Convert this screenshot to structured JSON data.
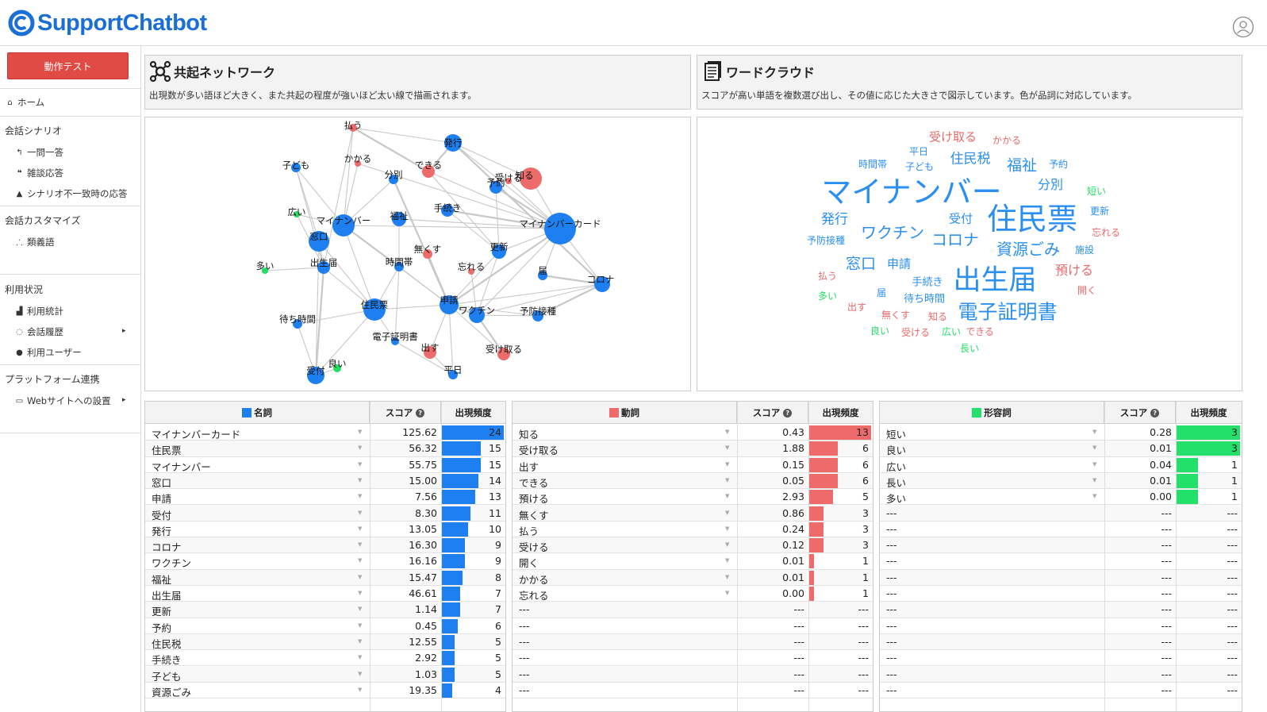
{
  "app": {
    "logo_text": "SupportChatbot"
  },
  "sidebar": {
    "test_button": "動作テスト",
    "home": "ホーム",
    "section_scenario": "会話シナリオ",
    "qa": "一問一答",
    "smalltalk": "雑談応答",
    "mismatch": "シナリオ不一致時の応答",
    "section_custom": "会話カスタマイズ",
    "synonyms": "類義語",
    "section_usage": "利用状況",
    "stats": "利用統計",
    "history": "会話履歴",
    "users": "利用ユーザー",
    "section_platform": "プラットフォーム連携",
    "web": "Webサイトへの設置"
  },
  "network_panel": {
    "title": "共起ネットワーク",
    "desc": "出現数が多い語ほど大きく、また共起の程度が強いほど太い線で描画されます。",
    "nodes": [
      {
        "label": "払う",
        "color": "red"
      },
      {
        "label": "発行",
        "color": "blue"
      },
      {
        "label": "子ども",
        "color": "blue"
      },
      {
        "label": "かかる",
        "color": "red"
      },
      {
        "label": "分別",
        "color": "blue"
      },
      {
        "label": "できる",
        "color": "red"
      },
      {
        "label": "受ける",
        "color": "red"
      },
      {
        "label": "知る",
        "color": "red"
      },
      {
        "label": "予約",
        "color": "blue"
      },
      {
        "label": "広い",
        "color": "green"
      },
      {
        "label": "マイナンバー",
        "color": "blue"
      },
      {
        "label": "福祉",
        "color": "blue"
      },
      {
        "label": "手続き",
        "color": "blue"
      },
      {
        "label": "マイナンバーカード",
        "color": "blue"
      },
      {
        "label": "窓口",
        "color": "blue"
      },
      {
        "label": "無くす",
        "color": "red"
      },
      {
        "label": "更新",
        "color": "blue"
      },
      {
        "label": "多い",
        "color": "green"
      },
      {
        "label": "出生届",
        "color": "blue"
      },
      {
        "label": "時間帯",
        "color": "blue"
      },
      {
        "label": "忘れる",
        "color": "red"
      },
      {
        "label": "届",
        "color": "blue"
      },
      {
        "label": "コロナ",
        "color": "blue"
      },
      {
        "label": "住民票",
        "color": "blue"
      },
      {
        "label": "申請",
        "color": "blue"
      },
      {
        "label": "ワクチン",
        "color": "blue"
      },
      {
        "label": "予防接種",
        "color": "blue"
      },
      {
        "label": "待ち時間",
        "color": "blue"
      },
      {
        "label": "電子証明書",
        "color": "blue"
      },
      {
        "label": "出す",
        "color": "red"
      },
      {
        "label": "受け取る",
        "color": "red"
      },
      {
        "label": "良い",
        "color": "green"
      },
      {
        "label": "受付",
        "color": "blue"
      },
      {
        "label": "平日",
        "color": "blue"
      }
    ]
  },
  "cloud_panel": {
    "title": "ワードクラウド",
    "desc": "スコアが高い単語を複数選び出し、その値に応じた大きさで図示しています。色が品詞に対応しています。",
    "words": [
      {
        "text": "受け取る",
        "color": "#e86a6a"
      },
      {
        "text": "かかる",
        "color": "#e86a6a"
      },
      {
        "text": "平日",
        "color": "#2a8ff0"
      },
      {
        "text": "時間帯",
        "color": "#2a8ff0"
      },
      {
        "text": "子ども",
        "color": "#2a8ff0"
      },
      {
        "text": "住民税",
        "color": "#2a8ff0"
      },
      {
        "text": "福祉",
        "color": "#2a8ff0"
      },
      {
        "text": "予約",
        "color": "#2a8ff0"
      },
      {
        "text": "マイナンバー",
        "color": "#2a8ff0"
      },
      {
        "text": "分別",
        "color": "#2a8ff0"
      },
      {
        "text": "短い",
        "color": "#22dd66"
      },
      {
        "text": "住民票",
        "color": "#2a8ff0"
      },
      {
        "text": "発行",
        "color": "#2a8ff0"
      },
      {
        "text": "受付",
        "color": "#2a8ff0"
      },
      {
        "text": "更新",
        "color": "#2a8ff0"
      },
      {
        "text": "ワクチン",
        "color": "#2a8ff0"
      },
      {
        "text": "予防接種",
        "color": "#2a8ff0"
      },
      {
        "text": "コロナ",
        "color": "#2a8ff0"
      },
      {
        "text": "忘れる",
        "color": "#e86a6a"
      },
      {
        "text": "資源ごみ",
        "color": "#2a8ff0"
      },
      {
        "text": "施設",
        "color": "#2a8ff0"
      },
      {
        "text": "窓口",
        "color": "#2a8ff0"
      },
      {
        "text": "申請",
        "color": "#2a8ff0"
      },
      {
        "text": "預ける",
        "color": "#e86a6a"
      },
      {
        "text": "払う",
        "color": "#e86a6a"
      },
      {
        "text": "出生届",
        "color": "#2a8ff0"
      },
      {
        "text": "手続き",
        "color": "#2a8ff0"
      },
      {
        "text": "開く",
        "color": "#e86a6a"
      },
      {
        "text": "多い",
        "color": "#22dd66"
      },
      {
        "text": "届",
        "color": "#2a8ff0"
      },
      {
        "text": "待ち時間",
        "color": "#2a8ff0"
      },
      {
        "text": "出す",
        "color": "#e86a6a"
      },
      {
        "text": "電子証明書",
        "color": "#2a8ff0"
      },
      {
        "text": "無くす",
        "color": "#e86a6a"
      },
      {
        "text": "知る",
        "color": "#e86a6a"
      },
      {
        "text": "良い",
        "color": "#22dd66"
      },
      {
        "text": "受ける",
        "color": "#e86a6a"
      },
      {
        "text": "広い",
        "color": "#22dd66"
      },
      {
        "text": "できる",
        "color": "#e86a6a"
      },
      {
        "text": "長い",
        "color": "#22dd66"
      }
    ]
  },
  "tables": [
    {
      "header": "名詞",
      "score_label": "スコア",
      "freq_label": "出現頻度",
      "color": "#1e7ff0",
      "max": 24,
      "rows": [
        [
          "マイナンバーカード",
          "125.62",
          24
        ],
        [
          "住民票",
          "56.32",
          15
        ],
        [
          "マイナンバー",
          "55.75",
          15
        ],
        [
          "窓口",
          "15.00",
          14
        ],
        [
          "申請",
          "7.56",
          13
        ],
        [
          "受付",
          "8.30",
          11
        ],
        [
          "発行",
          "13.05",
          10
        ],
        [
          "コロナ",
          "16.30",
          9
        ],
        [
          "ワクチン",
          "16.16",
          9
        ],
        [
          "福祉",
          "15.47",
          8
        ],
        [
          "出生届",
          "46.61",
          7
        ],
        [
          "更新",
          "1.14",
          7
        ],
        [
          "予約",
          "0.45",
          6
        ],
        [
          "住民税",
          "12.55",
          5
        ],
        [
          "手続き",
          "2.92",
          5
        ],
        [
          "子ども",
          "1.03",
          5
        ],
        [
          "資源ごみ",
          "19.35",
          4
        ]
      ]
    },
    {
      "header": "動詞",
      "score_label": "スコア",
      "freq_label": "出現頻度",
      "color": "#ef6b6b",
      "max": 13,
      "rows": [
        [
          "知る",
          "0.43",
          13
        ],
        [
          "受け取る",
          "1.88",
          6
        ],
        [
          "出す",
          "0.15",
          6
        ],
        [
          "できる",
          "0.05",
          6
        ],
        [
          "預ける",
          "2.93",
          5
        ],
        [
          "無くす",
          "0.86",
          3
        ],
        [
          "払う",
          "0.24",
          3
        ],
        [
          "受ける",
          "0.12",
          3
        ],
        [
          "開く",
          "0.01",
          1
        ],
        [
          "かかる",
          "0.01",
          1
        ],
        [
          "忘れる",
          "0.00",
          1
        ],
        [
          "---",
          "---",
          "---"
        ],
        [
          "---",
          "---",
          "---"
        ],
        [
          "---",
          "---",
          "---"
        ],
        [
          "---",
          "---",
          "---"
        ],
        [
          "---",
          "---",
          "---"
        ],
        [
          "---",
          "---",
          "---"
        ]
      ]
    },
    {
      "header": "形容詞",
      "score_label": "スコア",
      "freq_label": "出現頻度",
      "color": "#22e06a",
      "max": 3,
      "rows": [
        [
          "短い",
          "0.28",
          3
        ],
        [
          "良い",
          "0.01",
          3
        ],
        [
          "広い",
          "0.04",
          1
        ],
        [
          "長い",
          "0.01",
          1
        ],
        [
          "多い",
          "0.00",
          1
        ],
        [
          "---",
          "---",
          "---"
        ],
        [
          "---",
          "---",
          "---"
        ],
        [
          "---",
          "---",
          "---"
        ],
        [
          "---",
          "---",
          "---"
        ],
        [
          "---",
          "---",
          "---"
        ],
        [
          "---",
          "---",
          "---"
        ],
        [
          "---",
          "---",
          "---"
        ],
        [
          "---",
          "---",
          "---"
        ],
        [
          "---",
          "---",
          "---"
        ],
        [
          "---",
          "---",
          "---"
        ],
        [
          "---",
          "---",
          "---"
        ],
        [
          "---",
          "---",
          "---"
        ]
      ]
    }
  ]
}
